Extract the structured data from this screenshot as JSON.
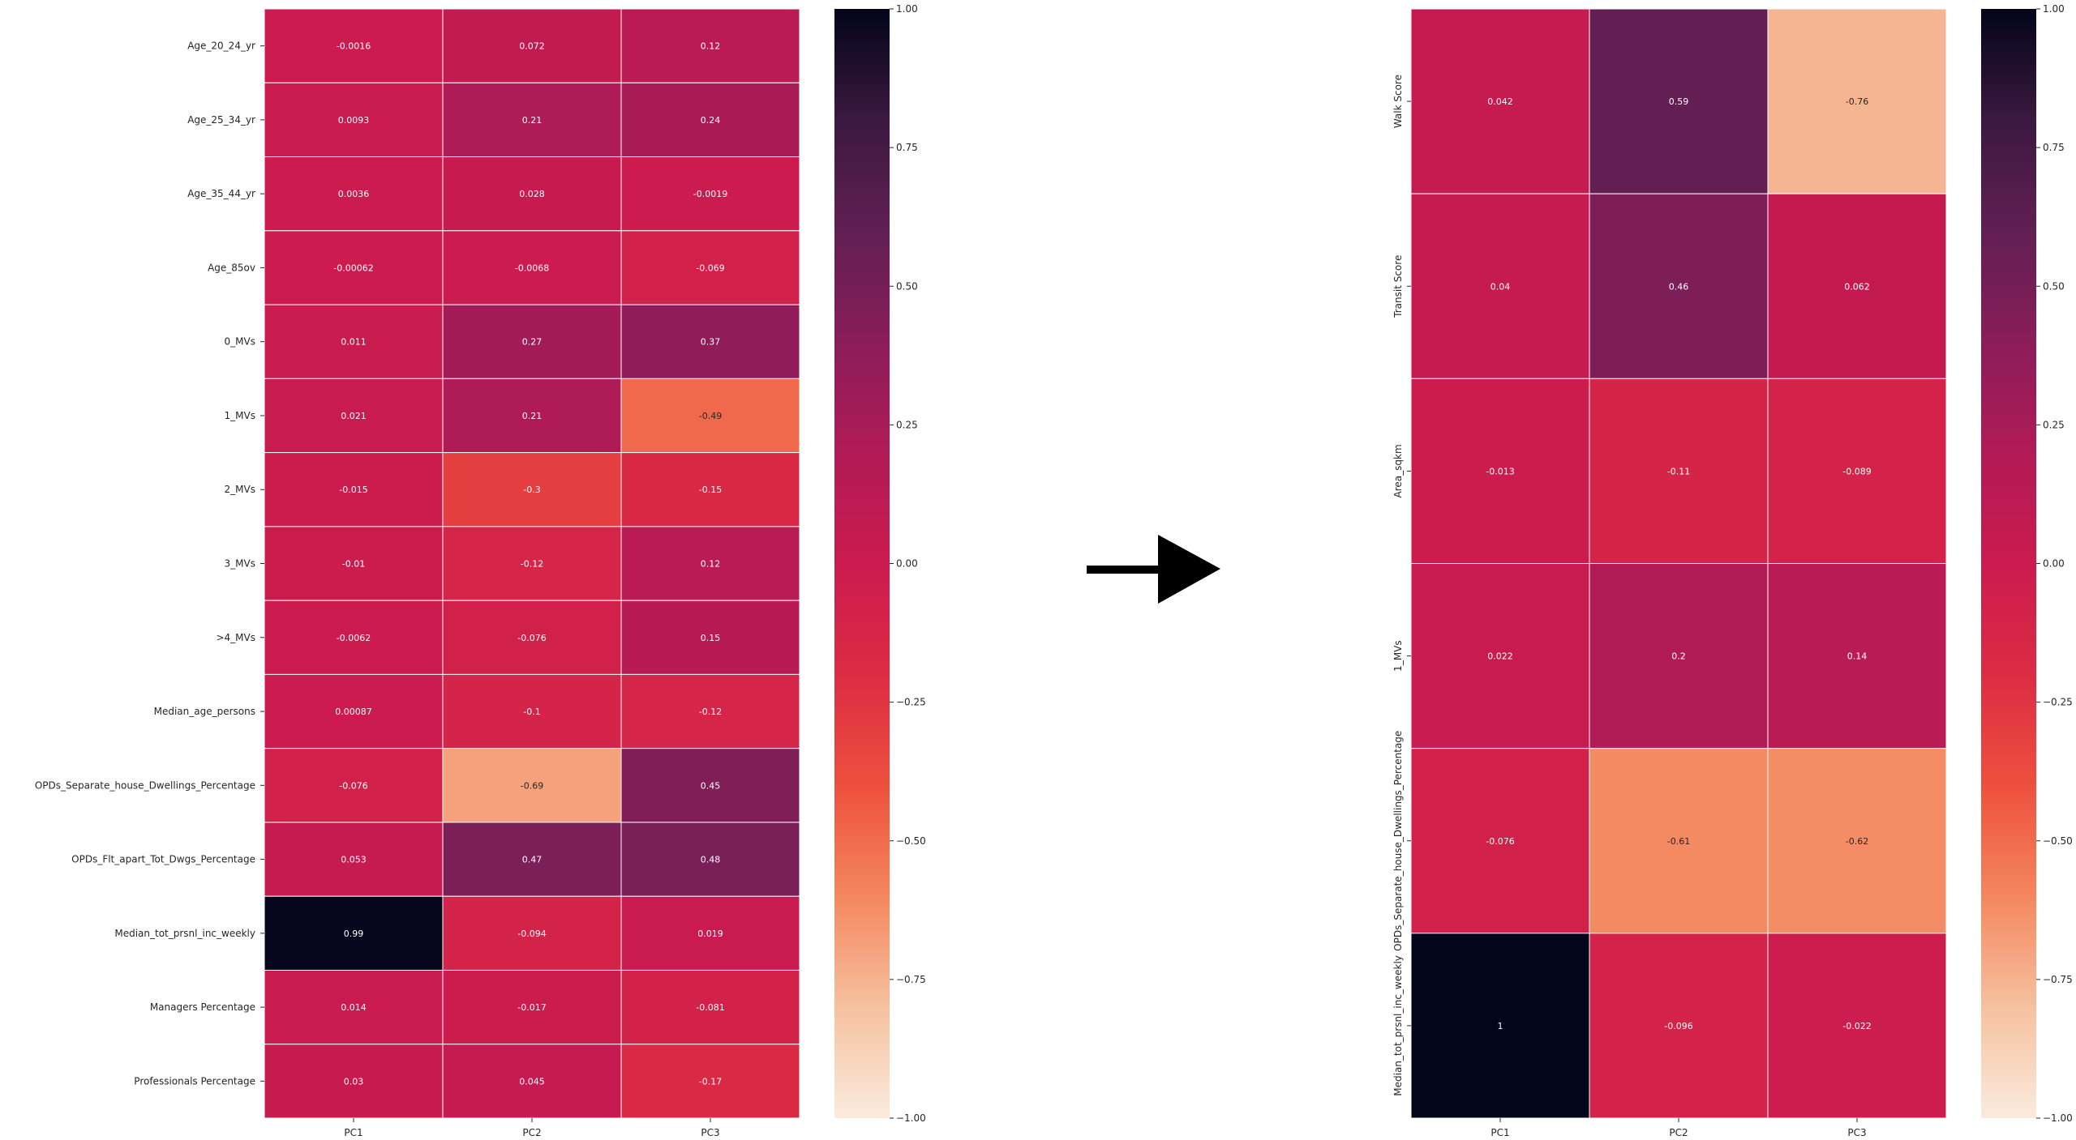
{
  "chart_data": [
    {
      "type": "heatmap",
      "rows": [
        "Age_20_24_yr",
        "Age_25_34_yr",
        "Age_35_44_yr",
        "Age_85ov",
        "0_MVs",
        "1_MVs",
        "2_MVs",
        "3_MVs",
        ">4_MVs",
        "Median_age_persons",
        "OPDs_Separate_house_Dwellings_Percentage",
        "OPDs_Flt_apart_Tot_Dwgs_Percentage",
        "Median_tot_prsnl_inc_weekly",
        "Managers Percentage",
        "Professionals Percentage"
      ],
      "columns": [
        "PC1",
        "PC2",
        "PC3"
      ],
      "values": [
        [
          -0.0016,
          0.072,
          0.12
        ],
        [
          0.0093,
          0.21,
          0.24
        ],
        [
          0.0036,
          0.028,
          -0.0019
        ],
        [
          -0.00062,
          -0.0068,
          -0.069
        ],
        [
          0.011,
          0.27,
          0.37
        ],
        [
          0.021,
          0.21,
          -0.49
        ],
        [
          -0.015,
          -0.3,
          -0.15
        ],
        [
          -0.01,
          -0.12,
          0.12
        ],
        [
          -0.0062,
          -0.076,
          0.15
        ],
        [
          0.00087,
          -0.1,
          -0.12
        ],
        [
          -0.076,
          -0.69,
          0.45
        ],
        [
          0.053,
          0.47,
          0.48
        ],
        [
          0.99,
          -0.094,
          0.019
        ],
        [
          0.014,
          -0.017,
          -0.081
        ],
        [
          0.03,
          0.045,
          -0.17
        ]
      ],
      "labels": [
        [
          "-0.0016",
          "0.072",
          "0.12"
        ],
        [
          "0.0093",
          "0.21",
          "0.24"
        ],
        [
          "0.0036",
          "0.028",
          "-0.0019"
        ],
        [
          "-0.00062",
          "-0.0068",
          "-0.069"
        ],
        [
          "0.011",
          "0.27",
          "0.37"
        ],
        [
          "0.021",
          "0.21",
          "-0.49"
        ],
        [
          "-0.015",
          "-0.3",
          "-0.15"
        ],
        [
          "-0.01",
          "-0.12",
          "0.12"
        ],
        [
          "-0.0062",
          "-0.076",
          "0.15"
        ],
        [
          "0.00087",
          "-0.1",
          "-0.12"
        ],
        [
          "-0.076",
          "-0.69",
          "0.45"
        ],
        [
          "0.053",
          "0.47",
          "0.48"
        ],
        [
          "0.99",
          "-0.094",
          "0.019"
        ],
        [
          "0.014",
          "-0.017",
          "-0.081"
        ],
        [
          "0.03",
          "0.045",
          "-0.17"
        ]
      ],
      "row_label_orientation": "horizontal",
      "colorbar": {
        "min": -1,
        "max": 1,
        "ticks": [
          "1.00",
          "0.75",
          "0.50",
          "0.25",
          "0.00",
          "−0.25",
          "−0.50",
          "−0.75",
          "−1.00"
        ]
      },
      "colormap": "rocket_r",
      "grid": false
    },
    {
      "type": "heatmap",
      "rows": [
        "Walk Score",
        "Transit Score",
        "Area_sqkm",
        "1_MVs",
        "OPDs_Separate_house_Dwellings_Percentage",
        "Median_tot_prsnl_inc_weekly"
      ],
      "columns": [
        "PC1",
        "PC2",
        "PC3"
      ],
      "values": [
        [
          0.042,
          0.59,
          -0.76
        ],
        [
          0.04,
          0.46,
          0.062
        ],
        [
          -0.013,
          -0.11,
          -0.089
        ],
        [
          0.022,
          0.2,
          0.14
        ],
        [
          -0.076,
          -0.61,
          -0.62
        ],
        [
          1,
          -0.096,
          -0.022
        ]
      ],
      "labels": [
        [
          "0.042",
          "0.59",
          "-0.76"
        ],
        [
          "0.04",
          "0.46",
          "0.062"
        ],
        [
          "-0.013",
          "-0.11",
          "-0.089"
        ],
        [
          "0.022",
          "0.2",
          "0.14"
        ],
        [
          "-0.076",
          "-0.61",
          "-0.62"
        ],
        [
          "1",
          "-0.096",
          "-0.022"
        ]
      ],
      "row_label_orientation": "vertical",
      "colorbar": {
        "min": -1,
        "max": 1,
        "ticks": [
          "1.00",
          "0.75",
          "0.50",
          "0.25",
          "0.00",
          "−0.25",
          "−0.50",
          "−0.75",
          "−1.00"
        ]
      },
      "colormap": "rocket_r",
      "grid": false
    }
  ],
  "connector": {
    "icon": "right-arrow-icon"
  }
}
